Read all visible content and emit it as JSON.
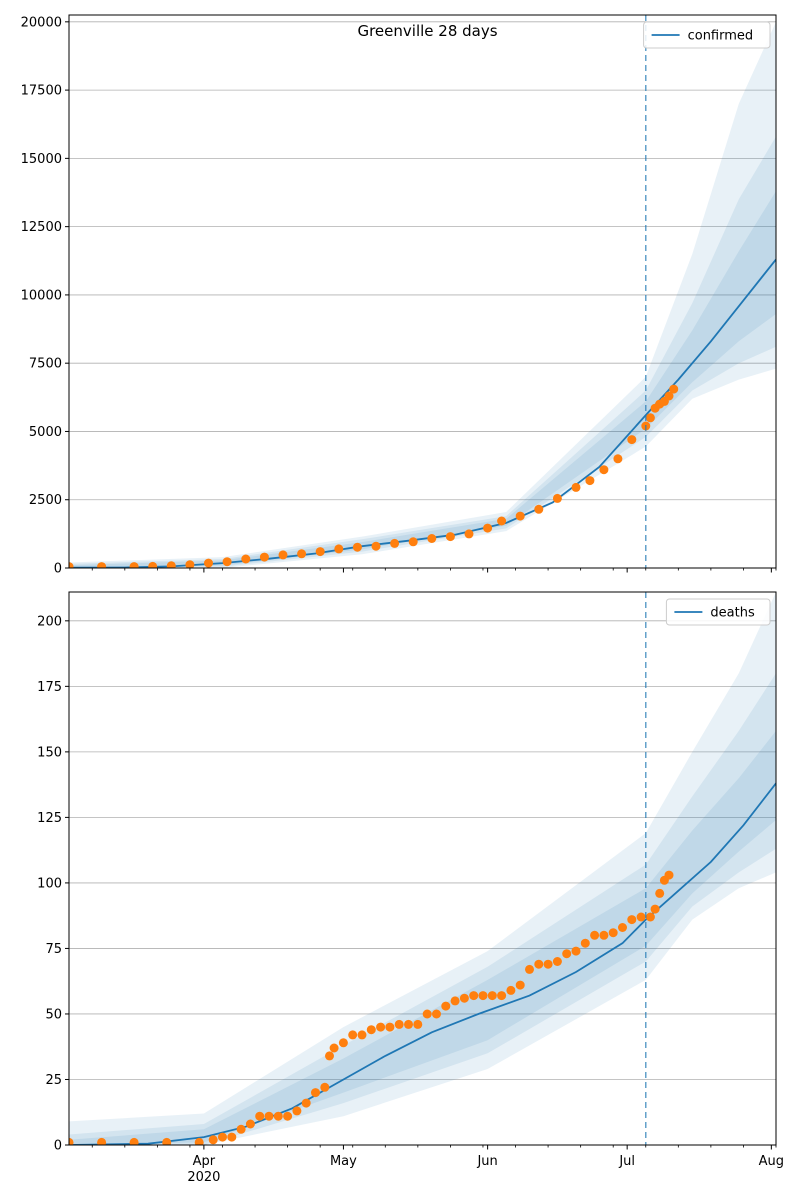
{
  "colors": {
    "model_line": "#1f77b4",
    "observed_points": "#ff7f0e",
    "band": "#1f77b4",
    "grid": "#b0b0b0",
    "vline": "#1f77b4"
  },
  "x_axis": {
    "start_date": "2020-03-03",
    "end_date": "2020-08-02",
    "major_ticks": [
      {
        "date": "2020-04-01",
        "label": "Apr",
        "sublabel": "2020"
      },
      {
        "date": "2020-05-01",
        "label": "May",
        "sublabel": ""
      },
      {
        "date": "2020-06-01",
        "label": "Jun",
        "sublabel": ""
      },
      {
        "date": "2020-07-01",
        "label": "Jul",
        "sublabel": ""
      },
      {
        "date": "2020-08-01",
        "label": "Aug",
        "sublabel": ""
      }
    ],
    "minor_tick_weekday": "Sunday"
  },
  "chart_data": [
    {
      "type": "line",
      "title": "Greenville 28 days",
      "ylabel": "",
      "ylim": [
        0,
        20250
      ],
      "yticks": [
        0,
        2500,
        5000,
        7500,
        10000,
        12500,
        15000,
        17500,
        20000
      ],
      "grid": "horizontal",
      "legend": "top-right",
      "forecast_start": "2020-07-05",
      "series": [
        {
          "name": "confirmed",
          "kind": "model-line",
          "points": [
            [
              "2020-03-03",
              10
            ],
            [
              "2020-03-15",
              20
            ],
            [
              "2020-03-25",
              60
            ],
            [
              "2020-04-05",
              180
            ],
            [
              "2020-04-15",
              340
            ],
            [
              "2020-04-25",
              530
            ],
            [
              "2020-05-05",
              800
            ],
            [
              "2020-05-15",
              1000
            ],
            [
              "2020-05-25",
              1220
            ],
            [
              "2020-06-05",
              1650
            ],
            [
              "2020-06-15",
              2400
            ],
            [
              "2020-06-25",
              3700
            ],
            [
              "2020-07-05",
              5600
            ],
            [
              "2020-07-12",
              6900
            ],
            [
              "2020-07-19",
              8300
            ],
            [
              "2020-07-26",
              9800
            ],
            [
              "2020-08-02",
              11300
            ]
          ]
        },
        {
          "kind": "observed",
          "points": [
            [
              "2020-03-03",
              50
            ],
            [
              "2020-03-10",
              50
            ],
            [
              "2020-03-17",
              50
            ],
            [
              "2020-03-21",
              60
            ],
            [
              "2020-03-25",
              80
            ],
            [
              "2020-03-29",
              120
            ],
            [
              "2020-04-02",
              180
            ],
            [
              "2020-04-06",
              230
            ],
            [
              "2020-04-10",
              330
            ],
            [
              "2020-04-14",
              400
            ],
            [
              "2020-04-18",
              480
            ],
            [
              "2020-04-22",
              520
            ],
            [
              "2020-04-26",
              600
            ],
            [
              "2020-04-30",
              700
            ],
            [
              "2020-05-04",
              760
            ],
            [
              "2020-05-08",
              800
            ],
            [
              "2020-05-12",
              900
            ],
            [
              "2020-05-16",
              960
            ],
            [
              "2020-05-20",
              1080
            ],
            [
              "2020-05-24",
              1150
            ],
            [
              "2020-05-28",
              1250
            ],
            [
              "2020-06-01",
              1460
            ],
            [
              "2020-06-04",
              1720
            ],
            [
              "2020-06-08",
              1900
            ],
            [
              "2020-06-12",
              2150
            ],
            [
              "2020-06-16",
              2550
            ],
            [
              "2020-06-20",
              2950
            ],
            [
              "2020-06-23",
              3200
            ],
            [
              "2020-06-26",
              3600
            ],
            [
              "2020-06-29",
              4000
            ],
            [
              "2020-07-02",
              4700
            ],
            [
              "2020-07-05",
              5200
            ],
            [
              "2020-07-06",
              5500
            ],
            [
              "2020-07-07",
              5850
            ],
            [
              "2020-07-08",
              6000
            ],
            [
              "2020-07-09",
              6100
            ],
            [
              "2020-07-10",
              6300
            ],
            [
              "2020-07-11",
              6550
            ]
          ]
        }
      ],
      "bands": [
        {
          "x": [
            "2020-03-03",
            "2020-04-05",
            "2020-05-05",
            "2020-06-05",
            "2020-07-05",
            "2020-07-15",
            "2020-07-25",
            "2020-08-02"
          ],
          "lower": [
            0,
            0,
            500,
            1350,
            4450,
            6200,
            6900,
            7300
          ],
          "upper": [
            200,
            400,
            1150,
            2050,
            7000,
            11500,
            17000,
            20000
          ]
        },
        {
          "x": [
            "2020-03-03",
            "2020-04-05",
            "2020-05-05",
            "2020-06-05",
            "2020-07-05",
            "2020-07-15",
            "2020-07-25",
            "2020-08-02"
          ],
          "lower": [
            0,
            50,
            600,
            1450,
            4800,
            6500,
            7500,
            8100
          ],
          "upper": [
            150,
            330,
            1050,
            1900,
            6500,
            9700,
            13500,
            15800
          ]
        },
        {
          "x": [
            "2020-03-03",
            "2020-04-05",
            "2020-05-05",
            "2020-06-05",
            "2020-07-05",
            "2020-07-15",
            "2020-07-25",
            "2020-08-02"
          ],
          "lower": [
            0,
            90,
            680,
            1550,
            5100,
            6800,
            8300,
            9300
          ],
          "upper": [
            100,
            280,
            950,
            1800,
            6100,
            8700,
            11600,
            13800
          ]
        }
      ]
    },
    {
      "type": "line",
      "title": "",
      "ylabel": "",
      "ylim": [
        0,
        211
      ],
      "yticks": [
        0,
        25,
        50,
        75,
        100,
        125,
        150,
        175,
        200
      ],
      "grid": "horizontal",
      "legend": "top-right",
      "forecast_start": "2020-07-05",
      "series": [
        {
          "name": "deaths",
          "kind": "model-line",
          "points": [
            [
              "2020-03-03",
              0
            ],
            [
              "2020-03-20",
              0.5
            ],
            [
              "2020-04-01",
              3
            ],
            [
              "2020-04-10",
              7
            ],
            [
              "2020-04-20",
              14
            ],
            [
              "2020-04-30",
              24
            ],
            [
              "2020-05-10",
              34
            ],
            [
              "2020-05-20",
              43
            ],
            [
              "2020-05-30",
              50
            ],
            [
              "2020-06-10",
              57
            ],
            [
              "2020-06-20",
              66
            ],
            [
              "2020-06-30",
              77
            ],
            [
              "2020-07-05",
              86
            ],
            [
              "2020-07-12",
              97
            ],
            [
              "2020-07-19",
              108
            ],
            [
              "2020-07-26",
              122
            ],
            [
              "2020-08-02",
              138
            ]
          ]
        },
        {
          "kind": "observed",
          "points": [
            [
              "2020-03-03",
              1
            ],
            [
              "2020-03-10",
              1
            ],
            [
              "2020-03-17",
              1
            ],
            [
              "2020-03-24",
              1
            ],
            [
              "2020-03-31",
              1
            ],
            [
              "2020-04-03",
              2
            ],
            [
              "2020-04-05",
              3
            ],
            [
              "2020-04-07",
              3
            ],
            [
              "2020-04-09",
              6
            ],
            [
              "2020-04-11",
              8
            ],
            [
              "2020-04-13",
              11
            ],
            [
              "2020-04-15",
              11
            ],
            [
              "2020-04-17",
              11
            ],
            [
              "2020-04-19",
              11
            ],
            [
              "2020-04-21",
              13
            ],
            [
              "2020-04-23",
              16
            ],
            [
              "2020-04-25",
              20
            ],
            [
              "2020-04-27",
              22
            ],
            [
              "2020-04-28",
              34
            ],
            [
              "2020-04-29",
              37
            ],
            [
              "2020-05-01",
              39
            ],
            [
              "2020-05-03",
              42
            ],
            [
              "2020-05-05",
              42
            ],
            [
              "2020-05-07",
              44
            ],
            [
              "2020-05-09",
              45
            ],
            [
              "2020-05-11",
              45
            ],
            [
              "2020-05-13",
              46
            ],
            [
              "2020-05-15",
              46
            ],
            [
              "2020-05-17",
              46
            ],
            [
              "2020-05-19",
              50
            ],
            [
              "2020-05-21",
              50
            ],
            [
              "2020-05-23",
              53
            ],
            [
              "2020-05-25",
              55
            ],
            [
              "2020-05-27",
              56
            ],
            [
              "2020-05-29",
              57
            ],
            [
              "2020-05-31",
              57
            ],
            [
              "2020-06-02",
              57
            ],
            [
              "2020-06-04",
              57
            ],
            [
              "2020-06-06",
              59
            ],
            [
              "2020-06-08",
              61
            ],
            [
              "2020-06-10",
              67
            ],
            [
              "2020-06-12",
              69
            ],
            [
              "2020-06-14",
              69
            ],
            [
              "2020-06-16",
              70
            ],
            [
              "2020-06-18",
              73
            ],
            [
              "2020-06-20",
              74
            ],
            [
              "2020-06-22",
              77
            ],
            [
              "2020-06-24",
              80
            ],
            [
              "2020-06-26",
              80
            ],
            [
              "2020-06-28",
              81
            ],
            [
              "2020-06-30",
              83
            ],
            [
              "2020-07-02",
              86
            ],
            [
              "2020-07-04",
              87
            ],
            [
              "2020-07-06",
              87
            ],
            [
              "2020-07-07",
              90
            ],
            [
              "2020-07-08",
              96
            ],
            [
              "2020-07-09",
              101
            ],
            [
              "2020-07-10",
              103
            ]
          ]
        }
      ],
      "bands": [
        {
          "x": [
            "2020-03-03",
            "2020-04-01",
            "2020-05-01",
            "2020-06-01",
            "2020-07-05",
            "2020-07-15",
            "2020-07-25",
            "2020-08-02"
          ],
          "lower": [
            0,
            0,
            11,
            29,
            63,
            86,
            98,
            104
          ],
          "upper": [
            9,
            12,
            45,
            74,
            119,
            150,
            180,
            211
          ]
        },
        {
          "x": [
            "2020-03-03",
            "2020-04-01",
            "2020-05-01",
            "2020-06-01",
            "2020-07-05",
            "2020-07-15",
            "2020-07-25",
            "2020-08-02"
          ],
          "lower": [
            0,
            0,
            16,
            35,
            70,
            91,
            104,
            113
          ],
          "upper": [
            4,
            8,
            38,
            68,
            107,
            133,
            158,
            180
          ]
        },
        {
          "x": [
            "2020-03-03",
            "2020-04-01",
            "2020-05-01",
            "2020-06-01",
            "2020-07-05",
            "2020-07-15",
            "2020-07-25",
            "2020-08-02"
          ],
          "lower": [
            0,
            1,
            20,
            40,
            76,
            96,
            112,
            124
          ],
          "upper": [
            2,
            6,
            33,
            63,
            98,
            120,
            140,
            158
          ]
        }
      ]
    }
  ]
}
